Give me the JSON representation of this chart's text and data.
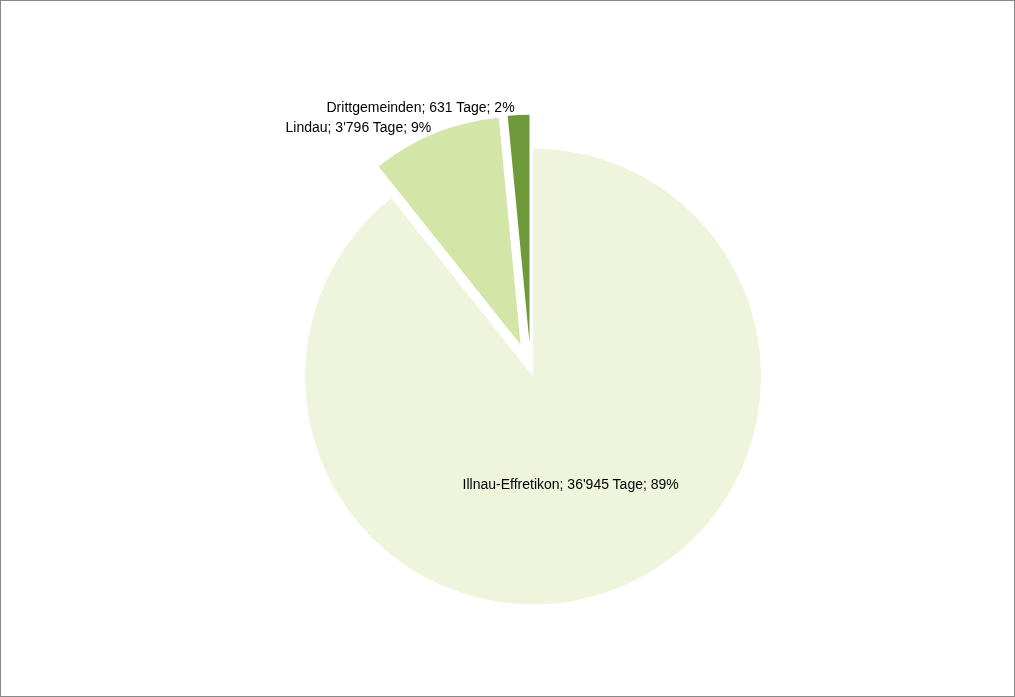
{
  "chart_data": {
    "type": "pie",
    "categories": [
      "Illnau-Effretikon",
      "Lindau",
      "Drittgemeinden"
    ],
    "values": [
      36945,
      3796,
      631
    ],
    "value_labels": [
      "36'945 Tage; 89%",
      "3'796 Tage; 9%",
      "631 Tage; 2%"
    ],
    "colors": [
      "#eef5dc",
      "#d3e6a8",
      "#6f9a3a"
    ],
    "legend": false
  }
}
